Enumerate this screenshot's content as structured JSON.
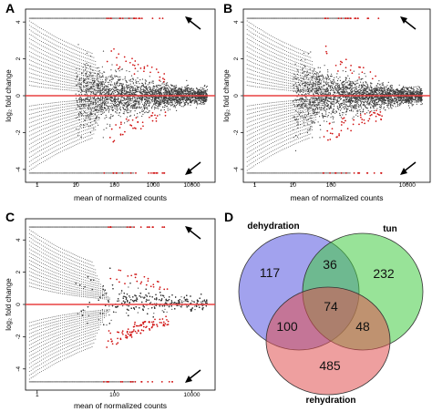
{
  "colors": {
    "points": "#3a3a3a",
    "significant": "#d01010",
    "zero_line": "#e84040",
    "venn_dehydration": "#5555e0",
    "venn_tun": "#44cc44",
    "venn_rehydration": "#e05050"
  },
  "chart_data": [
    {
      "panel_label": "A",
      "type": "scatter",
      "xlabel": "mean of normalized counts",
      "ylabel": "log₂ fold change",
      "x_scale": "log",
      "x_ticks": [
        "1",
        "10",
        "100",
        "1000",
        "10000"
      ],
      "y_ticks": [
        "4",
        "2",
        "0",
        "-2",
        "-4"
      ],
      "xlim": [
        0.5,
        40000
      ],
      "ylim": [
        -4.6,
        4.6
      ],
      "reference_line_y": 0,
      "arrows": [
        "top-right",
        "bottom-right"
      ]
    },
    {
      "panel_label": "B",
      "type": "scatter",
      "xlabel": "mean of normalized counts",
      "ylabel": "log₂ fold change",
      "x_scale": "log",
      "x_ticks": [
        "1",
        "10",
        "100",
        "10000"
      ],
      "y_ticks": [
        "4",
        "2",
        "0",
        "-2",
        "-4"
      ],
      "xlim": [
        0.5,
        40000
      ],
      "ylim": [
        -4.6,
        4.6
      ],
      "reference_line_y": 0,
      "arrows": [
        "top-right",
        "bottom-right"
      ]
    },
    {
      "panel_label": "C",
      "type": "scatter",
      "xlabel": "mean of normalized counts",
      "ylabel": "log₂ fold change",
      "x_scale": "log",
      "x_ticks": [
        "1",
        "100",
        "10000"
      ],
      "y_ticks": [
        "4",
        "2",
        "0",
        "-2",
        "-4"
      ],
      "xlim": [
        0.5,
        40000
      ],
      "ylim": [
        -5.2,
        5.2
      ],
      "reference_line_y": 0,
      "arrows": [
        "top-right",
        "bottom-right"
      ]
    },
    {
      "panel_label": "D",
      "type": "venn",
      "sets": [
        "dehydration",
        "tun",
        "rehydration"
      ],
      "regions": {
        "dehydration_only": 117,
        "tun_only": 232,
        "rehydration_only": 485,
        "dehydration_tun": 36,
        "dehydration_rehydration": 100,
        "tun_rehydration": 48,
        "all_three": 74
      }
    }
  ]
}
